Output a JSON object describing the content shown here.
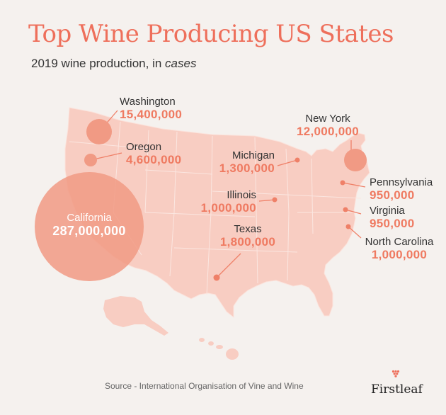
{
  "title": "Top Wine Producing US States",
  "subtitle_prefix": "2019 wine production, in ",
  "subtitle_emph": "cases",
  "source": "Source - International Organisation of Vine and Wine",
  "brand": "Firstleaf",
  "colors": {
    "accent": "#ee6f5b",
    "map_fill": "#f8cdc2",
    "bubble": "#f19a84",
    "marker": "#ef8068",
    "background": "#f5f1ee"
  },
  "icons": {
    "brand_logo": "grape-cluster-icon"
  },
  "states": [
    {
      "name": "Washington",
      "value": "15,400,000",
      "cases": 15400000
    },
    {
      "name": "Oregon",
      "value": "4,600,000",
      "cases": 4600000
    },
    {
      "name": "California",
      "value": "287,000,000",
      "cases": 287000000
    },
    {
      "name": "Michigan",
      "value": "1,300,000",
      "cases": 1300000
    },
    {
      "name": "New York",
      "value": "12,000,000",
      "cases": 12000000
    },
    {
      "name": "Illinois",
      "value": "1,000,000",
      "cases": 1000000
    },
    {
      "name": "Pennsylvania",
      "value": "950,000",
      "cases": 950000
    },
    {
      "name": "Texas",
      "value": "1,800,000",
      "cases": 1800000
    },
    {
      "name": "Virginia",
      "value": "950,000",
      "cases": 950000
    },
    {
      "name": "North Carolina",
      "value": "1,000,000",
      "cases": 1000000
    }
  ]
}
